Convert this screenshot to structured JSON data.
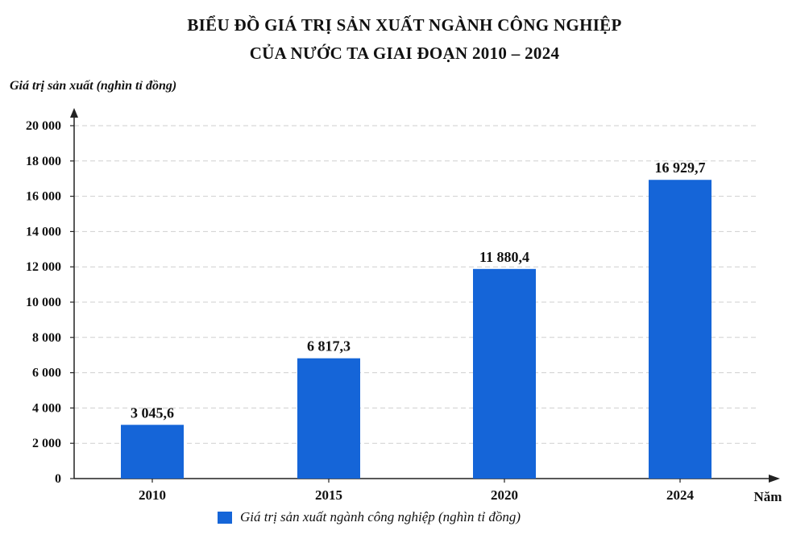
{
  "chart_data": {
    "type": "bar",
    "title_lines": [
      "BIỂU ĐỒ GIÁ TRỊ SẢN XUẤT NGÀNH CÔNG NGHIỆP",
      "CỦA NƯỚC TA GIAI ĐOẠN 2010 – 2024"
    ],
    "ylabel": "Giá trị sản xuất (nghìn tỉ đồng)",
    "xlabel": "Năm",
    "categories": [
      "2010",
      "2015",
      "2020",
      "2024"
    ],
    "series": [
      {
        "name": "Giá trị sản xuất ngành công nghiệp (nghìn tỉ đồng)",
        "values": [
          3045.6,
          6817.3,
          11880.4,
          16929.7
        ],
        "value_labels": [
          "3 045,6",
          "6 817,3",
          "11 880,4",
          "16 929,7"
        ],
        "color": "#1565d8"
      }
    ],
    "ylim": [
      0,
      20000
    ],
    "yticks": [
      0,
      2000,
      4000,
      6000,
      8000,
      10000,
      12000,
      14000,
      16000,
      18000,
      20000
    ],
    "ytick_labels": [
      "0",
      "2 000",
      "4 000",
      "6 000",
      "8 000",
      "10 000",
      "12 000",
      "14 000",
      "16 000",
      "18 000",
      "20 000"
    ],
    "grid": true,
    "legend_position": "bottom"
  }
}
